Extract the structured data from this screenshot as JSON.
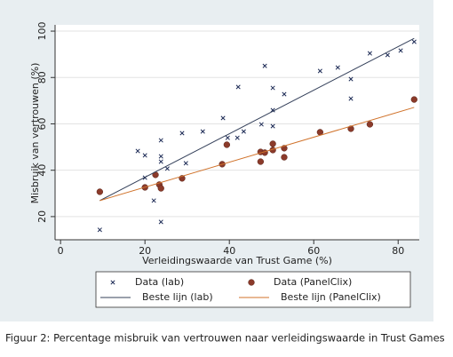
{
  "chart_data": {
    "type": "scatter",
    "x_label": "Verleidingswaarde van Trust Game (%)",
    "y_label": "Misbruik van vertrouwen (%)",
    "xlim": [
      -1.3,
      85
    ],
    "ylim": [
      10,
      102.7
    ],
    "xticks": [
      0,
      20,
      40,
      60,
      80
    ],
    "yticks": [
      20,
      40,
      60,
      80,
      100
    ],
    "grid": true,
    "series": [
      {
        "name": "Data (lab)",
        "color": "#1c2a55",
        "marker": "x",
        "x": [
          9.3,
          18.3,
          20,
          20,
          22.1,
          23.8,
          23.8,
          23.8,
          23.8,
          25.3,
          28.8,
          29.7,
          33.7,
          38.5,
          39.6,
          41.9,
          42.1,
          43.4,
          47.6,
          48.4,
          50.3,
          50.3,
          50.3,
          53,
          61.5,
          65.7,
          68.8,
          68.8,
          73.3,
          77.5,
          80.6,
          83.8
        ],
        "values": [
          14.3,
          48.3,
          46.4,
          36.8,
          26.9,
          52.9,
          46,
          43.7,
          17.7,
          40.7,
          56,
          43,
          56.7,
          62.5,
          54,
          54,
          75.9,
          56.7,
          59.8,
          85,
          75.5,
          65.9,
          59,
          72.8,
          82.8,
          84.3,
          79.3,
          70.9,
          90.4,
          89.7,
          91.6,
          95.4
        ]
      },
      {
        "name": "Data (PanelClix)",
        "color": "#8b3a2a",
        "marker": "dot",
        "x": [
          9.3,
          20,
          22.5,
          23.4,
          23.8,
          28.8,
          38.3,
          39.4,
          47.4,
          47.4,
          48.4,
          50.3,
          50.3,
          53,
          53,
          61.5,
          68.8,
          73.3,
          83.8
        ],
        "values": [
          30.7,
          32.6,
          38,
          33.8,
          32.2,
          36.5,
          42.6,
          51,
          47.9,
          43.7,
          47.6,
          51.4,
          48.7,
          49.5,
          45.6,
          56.4,
          57.9,
          59.8,
          70.5
        ]
      },
      {
        "name": "Beste lijn (lab)",
        "color": "#34405a",
        "marker": "line",
        "x": [
          9.3,
          83.8
        ],
        "values": [
          26.9,
          96.9
        ]
      },
      {
        "name": "Beste lijn (PanelClix)",
        "color": "#d0722a",
        "marker": "line",
        "x": [
          9.3,
          83.8
        ],
        "values": [
          26.9,
          67.1
        ]
      }
    ]
  },
  "caption": "Figuur 2: Percentage misbruik van vertrouwen naar verleidingswaarde in Trust Games"
}
